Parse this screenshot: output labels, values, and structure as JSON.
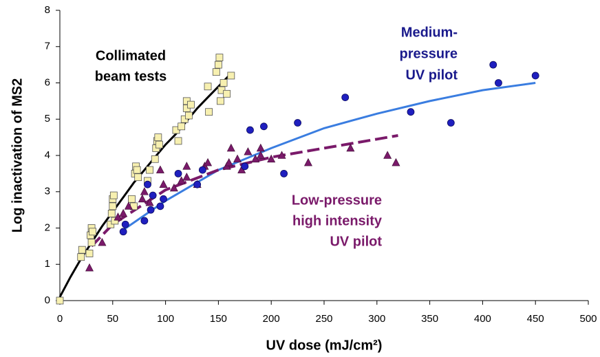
{
  "chart_data": {
    "type": "scatter",
    "x_label": "UV dose (mJ/cm²)",
    "y_label": "Log inactivation of MS2",
    "xlim": [
      0,
      500
    ],
    "xticks": [
      0,
      50,
      100,
      150,
      200,
      250,
      300,
      350,
      400,
      450,
      500
    ],
    "ylim": [
      0,
      8
    ],
    "yticks": [
      0,
      1,
      2,
      3,
      4,
      5,
      6,
      7,
      8
    ],
    "grid": false,
    "annotations": [
      {
        "lines": [
          "Collimated",
          "beam tests"
        ],
        "color": "#000000"
      },
      {
        "lines": [
          "Medium-",
          "pressure",
          "UV pilot"
        ],
        "color": "#1a1a8c"
      },
      {
        "lines": [
          "Low-pressure",
          "high intensity",
          "UV pilot"
        ],
        "color": "#7a1a6a"
      }
    ],
    "series": [
      {
        "name": "Collimated beam fit",
        "style": "line",
        "color": "#000000",
        "x": [
          0,
          10,
          20,
          30,
          40,
          50,
          60,
          70,
          80,
          90,
          100,
          110,
          120,
          130,
          140,
          150,
          160
        ],
        "values": [
          0.1,
          0.65,
          1.15,
          1.6,
          2.05,
          2.45,
          2.85,
          3.25,
          3.6,
          3.95,
          4.3,
          4.6,
          4.95,
          5.3,
          5.6,
          5.9,
          6.2
        ]
      },
      {
        "name": "Medium-pressure fit",
        "style": "line",
        "color": "#3a7de0",
        "x": [
          60,
          100,
          150,
          200,
          250,
          300,
          350,
          400,
          450
        ],
        "values": [
          1.95,
          2.75,
          3.6,
          4.2,
          4.75,
          5.15,
          5.5,
          5.8,
          6.0
        ]
      },
      {
        "name": "Low-pressure fit",
        "style": "dashed",
        "color": "#7a1a6a",
        "x": [
          30,
          50,
          100,
          150,
          200,
          250,
          300,
          320
        ],
        "values": [
          1.5,
          2.1,
          3.05,
          3.6,
          3.95,
          4.2,
          4.45,
          4.55
        ]
      },
      {
        "name": "Collimated beam tests",
        "style": "square",
        "color": "#f7f0b0",
        "x": [
          0,
          20,
          21,
          28,
          29,
          30,
          30,
          31,
          48,
          49,
          50,
          50,
          51,
          52,
          68,
          70,
          71,
          72,
          73,
          74,
          83,
          85,
          90,
          91,
          92,
          93,
          94,
          110,
          112,
          115,
          118,
          120,
          120,
          122,
          124,
          140,
          141,
          148,
          150,
          151,
          152,
          153,
          155,
          158,
          162
        ],
        "values": [
          0,
          1.2,
          1.4,
          1.3,
          1.8,
          2.0,
          1.6,
          1.9,
          2.1,
          2.4,
          2.8,
          2.6,
          2.9,
          2.2,
          2.8,
          2.6,
          3.5,
          3.7,
          3.6,
          3.4,
          3.3,
          3.6,
          3.9,
          4.2,
          4.4,
          4.5,
          4.3,
          4.7,
          4.4,
          4.8,
          5.0,
          5.3,
          5.5,
          5.1,
          5.4,
          5.9,
          5.2,
          6.3,
          6.5,
          6.7,
          5.5,
          5.8,
          6.0,
          5.7,
          6.2
        ]
      },
      {
        "name": "Medium-pressure UV pilot",
        "style": "circle",
        "color": "#1f1fbf",
        "x": [
          60,
          62,
          80,
          83,
          86,
          88,
          95,
          98,
          112,
          130,
          135,
          175,
          180,
          193,
          212,
          225,
          270,
          332,
          370,
          410,
          415,
          450
        ],
        "values": [
          1.9,
          2.1,
          2.2,
          3.2,
          2.5,
          2.9,
          2.6,
          2.8,
          3.5,
          3.2,
          3.6,
          3.7,
          4.7,
          4.8,
          3.5,
          4.9,
          5.6,
          5.2,
          4.9,
          6.5,
          6.0,
          6.2
        ]
      },
      {
        "name": "Low-pressure high intensity UV pilot",
        "style": "triangle",
        "color": "#7a1a6a",
        "x": [
          28,
          40,
          55,
          60,
          65,
          78,
          80,
          85,
          95,
          98,
          108,
          115,
          120,
          120,
          130,
          137,
          140,
          158,
          160,
          162,
          168,
          172,
          178,
          185,
          190,
          190,
          200,
          210,
          235,
          275,
          310,
          318
        ],
        "values": [
          0.9,
          1.6,
          2.3,
          2.4,
          2.6,
          2.8,
          3.0,
          2.7,
          3.6,
          3.2,
          3.1,
          3.3,
          3.4,
          3.7,
          3.2,
          3.7,
          3.8,
          3.7,
          3.8,
          4.2,
          3.9,
          3.6,
          4.1,
          3.9,
          4.2,
          4.0,
          3.9,
          4.0,
          3.8,
          4.2,
          4.0,
          3.8
        ]
      }
    ]
  }
}
